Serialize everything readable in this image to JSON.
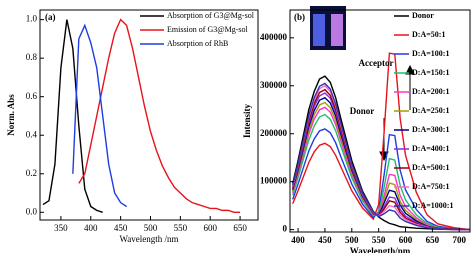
{
  "chart_data": [
    {
      "type": "line",
      "annotations": [
        "(a)"
      ],
      "x_label": "Wavelength /nm",
      "y_label": "Norm. Abs",
      "x": [
        320,
        330,
        340,
        350,
        360,
        370,
        380,
        390,
        400,
        410,
        420,
        430,
        440,
        450,
        460,
        470,
        480,
        490,
        500,
        510,
        520,
        530,
        540,
        550,
        560,
        570,
        580,
        590,
        600,
        610,
        620,
        630,
        640,
        650
      ],
      "series": [
        {
          "name": "Absorption of G3@Mg-sol",
          "color": "#000000",
          "values": [
            0.04,
            0.06,
            0.25,
            0.75,
            1.0,
            0.85,
            0.45,
            0.12,
            0.03,
            0.01,
            0.0,
            null,
            null,
            null,
            null,
            null,
            null,
            null,
            null,
            null,
            null,
            null,
            null,
            null,
            null,
            null,
            null,
            null,
            null,
            null,
            null,
            null,
            null,
            null
          ]
        },
        {
          "name": "Emission of G3@Mg-sol",
          "color": "#e8141c",
          "values": [
            null,
            null,
            null,
            null,
            null,
            null,
            0.15,
            0.2,
            0.35,
            0.5,
            0.65,
            0.8,
            0.93,
            1.0,
            0.97,
            0.85,
            0.7,
            0.55,
            0.42,
            0.32,
            0.24,
            0.18,
            0.13,
            0.1,
            0.07,
            0.05,
            0.04,
            0.03,
            0.02,
            0.02,
            0.01,
            0.01,
            0.0,
            0.0
          ]
        },
        {
          "name": "Absorption of RhB",
          "color": "#1f3de0",
          "values": [
            null,
            null,
            null,
            null,
            null,
            0.2,
            0.9,
            0.97,
            0.88,
            0.75,
            0.5,
            0.25,
            0.1,
            0.05,
            0.03,
            null,
            null,
            null,
            null,
            null,
            null,
            null,
            null,
            null,
            null,
            null,
            null,
            null,
            null,
            null,
            null,
            null,
            null,
            null
          ]
        }
      ],
      "xlim": [
        315,
        680
      ],
      "xticks": [
        350,
        400,
        450,
        500,
        550,
        600,
        650
      ],
      "ylim": [
        -0.04,
        1.05
      ],
      "yticks": [
        {
          "value": 0,
          "label": "0.0"
        },
        0.2,
        0.4,
        0.6,
        0.8,
        {
          "value": 1,
          "label": "1.0"
        }
      ],
      "legend": "upper right"
    },
    {
      "type": "line",
      "annotations": [
        "(b)",
        "Donor",
        "Acceptor"
      ],
      "x_label": "Wavelength/nm",
      "y_label": "Intensity",
      "x": [
        390,
        400,
        420,
        430,
        440,
        450,
        460,
        470,
        480,
        500,
        520,
        540,
        550,
        560,
        570,
        580,
        590,
        600,
        620,
        640,
        660,
        690,
        720
      ],
      "series": [
        {
          "name": "Donor",
          "color": "#000000",
          "values": [
            96000,
            144000,
            250000,
            288000,
            314000,
            320000,
            307000,
            275000,
            230000,
            144000,
            80000,
            38000,
            26000,
            19000,
            13000,
            10000,
            6000,
            5000,
            3000,
            2000,
            1000,
            0,
            0
          ]
        },
        {
          "name": "D:A=50:1",
          "color": "#e8141c",
          "values": [
            54000,
            81000,
            140000,
            162000,
            176000,
            180000,
            173000,
            155000,
            130000,
            81000,
            45000,
            22000,
            52000,
            201000,
            368000,
            366000,
            232000,
            155000,
            78000,
            31000,
            12000,
            4000,
            0
          ]
        },
        {
          "name": "D:A=100:1",
          "color": "#1f3de0",
          "values": [
            63000,
            95000,
            164000,
            189000,
            206000,
            210000,
            202000,
            181000,
            151000,
            95000,
            53000,
            25000,
            37000,
            113000,
            198000,
            196000,
            124000,
            83000,
            42000,
            17000,
            7000,
            2000,
            0
          ]
        },
        {
          "name": "D:A=150:1",
          "color": "#1fbf6a",
          "values": [
            72000,
            108000,
            187000,
            216000,
            235000,
            240000,
            230000,
            206000,
            173000,
            108000,
            60000,
            29000,
            34000,
            87000,
            148000,
            145000,
            92000,
            62000,
            31000,
            13000,
            5000,
            1000,
            0
          ]
        },
        {
          "name": "D:A=200:1",
          "color": "#ff33cc",
          "values": [
            77000,
            115000,
            199000,
            230000,
            250000,
            255000,
            245000,
            219000,
            184000,
            115000,
            64000,
            31000,
            31000,
            70000,
            115000,
            113000,
            71000,
            48000,
            25000,
            10000,
            4000,
            1000,
            0
          ]
        },
        {
          "name": "D:A=250:1",
          "color": "#a0a000",
          "values": [
            80000,
            119000,
            207000,
            239000,
            260000,
            265000,
            254000,
            228000,
            191000,
            119000,
            66000,
            32000,
            30000,
            61000,
            97000,
            94000,
            59000,
            40000,
            21000,
            8000,
            4000,
            1000,
            0
          ]
        },
        {
          "name": "D:A=300:1",
          "color": "#000080",
          "values": [
            83000,
            124000,
            215000,
            248000,
            270000,
            275000,
            264000,
            237000,
            198000,
            124000,
            69000,
            33000,
            30000,
            55000,
            82000,
            79000,
            51000,
            34000,
            18000,
            7000,
            3000,
            1000,
            0
          ]
        },
        {
          "name": "D:A=400:1",
          "color": "#8b2be2",
          "values": [
            86000,
            128000,
            222000,
            257000,
            279000,
            285000,
            274000,
            245000,
            205000,
            128000,
            71000,
            34000,
            29000,
            47000,
            68000,
            66000,
            42000,
            28000,
            15000,
            6000,
            3000,
            1000,
            0
          ]
        },
        {
          "name": "D:A=500:1",
          "color": "#990000",
          "values": [
            88000,
            131000,
            228000,
            263000,
            286000,
            292000,
            280000,
            251000,
            210000,
            131000,
            73000,
            35000,
            28000,
            43000,
            60000,
            57000,
            36000,
            24000,
            13000,
            5000,
            3000,
            1000,
            0
          ]
        },
        {
          "name": "D:A=750:1",
          "color": "#ff66cc",
          "values": [
            90000,
            135000,
            234000,
            270000,
            294000,
            300000,
            288000,
            258000,
            216000,
            135000,
            75000,
            36000,
            28000,
            38000,
            50000,
            47000,
            30000,
            21000,
            11000,
            5000,
            2000,
            0,
            0
          ]
        },
        {
          "name": "D:A=1000:1",
          "color": "#3333aa",
          "values": [
            92000,
            137000,
            238000,
            275000,
            299000,
            305000,
            293000,
            262000,
            220000,
            137000,
            76000,
            37000,
            27000,
            33000,
            41000,
            38000,
            24000,
            17000,
            9000,
            4000,
            2000,
            0,
            0
          ]
        }
      ],
      "xlim": [
        385,
        720
      ],
      "xticks": [
        400,
        450,
        500,
        550,
        600,
        650,
        700
      ],
      "ylim": [
        -5000,
        458000
      ],
      "yticks": [
        0,
        100000,
        200000,
        300000,
        400000
      ],
      "legend": "upper right"
    }
  ]
}
